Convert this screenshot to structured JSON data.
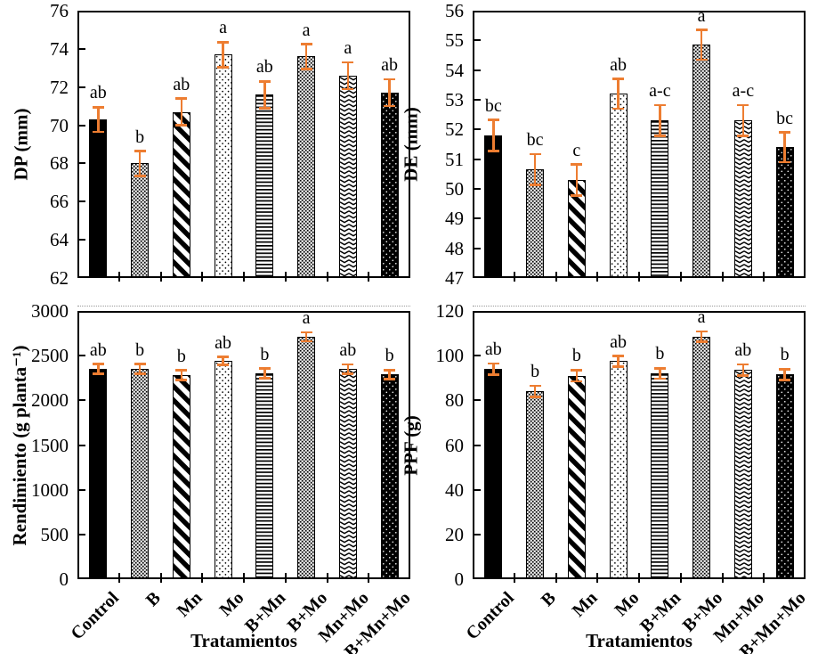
{
  "figure": {
    "background": "#ffffff",
    "axis_color": "#000000",
    "error_bar_color": "#ED7D31",
    "categories": [
      "Control",
      "B",
      "Mn",
      "Mo",
      "B+Mn",
      "B+Mo",
      "Mn+Mo",
      "B+Mn+Mo"
    ],
    "bar_patterns": [
      "solid-black",
      "gray-stipple",
      "diagonal-stripe",
      "dot-sparse",
      "horizontal-line",
      "gray-stipple",
      "chevron",
      "black-dot"
    ]
  },
  "chart_data": [
    {
      "type": "bar",
      "panel": "top-left",
      "ylabel": "DP (mm)",
      "xlabel": "",
      "ylim": [
        62,
        76
      ],
      "yticks": [
        "62",
        "64",
        "66",
        "68",
        "70",
        "72",
        "74",
        "76"
      ],
      "ytick_values": [
        62,
        64,
        66,
        68,
        70,
        72,
        74,
        76
      ],
      "grid": false,
      "categories": [
        "Control",
        "B",
        "Mn",
        "Mo",
        "B+Mn",
        "B+Mo",
        "Mn+Mo",
        "B+Mn+Mo"
      ],
      "values": [
        70.3,
        68.0,
        70.7,
        73.7,
        71.6,
        73.6,
        72.6,
        71.7
      ],
      "errors": [
        0.65,
        0.65,
        0.7,
        0.65,
        0.7,
        0.65,
        0.7,
        0.7
      ],
      "letters": [
        "ab",
        "b",
        "ab",
        "a",
        "ab",
        "a",
        "a",
        "ab"
      ]
    },
    {
      "type": "bar",
      "panel": "top-right",
      "ylabel": "DE (mm)",
      "xlabel": "",
      "ylim": [
        47,
        56
      ],
      "yticks": [
        "47",
        "48",
        "49",
        "50",
        "51",
        "52",
        "53",
        "54",
        "55",
        "56"
      ],
      "ytick_values": [
        47,
        48,
        49,
        50,
        51,
        52,
        53,
        54,
        55,
        56
      ],
      "grid": false,
      "categories": [
        "Control",
        "B",
        "Mn",
        "Mo",
        "B+Mn",
        "B+Mo",
        "Mn+Mo",
        "B+Mn+Mo"
      ],
      "values": [
        51.8,
        50.65,
        50.3,
        53.2,
        52.3,
        54.85,
        52.3,
        51.4
      ],
      "errors": [
        0.52,
        0.52,
        0.52,
        0.5,
        0.52,
        0.5,
        0.52,
        0.5
      ],
      "letters": [
        "bc",
        "bc",
        "c",
        "ab",
        "a-c",
        "a",
        "a-c",
        "bc"
      ]
    },
    {
      "type": "bar",
      "panel": "bottom-left",
      "ylabel": "Rendimiento (g planta⁻¹)",
      "xlabel": "Tratamientos",
      "ylim": [
        0,
        3000
      ],
      "yticks": [
        "0",
        "500",
        "1000",
        "1500",
        "2000",
        "2500",
        "3000"
      ],
      "ytick_values": [
        0,
        500,
        1000,
        1500,
        2000,
        2500,
        3000
      ],
      "grid": false,
      "categories": [
        "Control",
        "B",
        "Mn",
        "Mo",
        "B+Mn",
        "B+Mo",
        "Mn+Mo",
        "B+Mn+Mo"
      ],
      "values": [
        2350,
        2350,
        2280,
        2440,
        2300,
        2710,
        2350,
        2290
      ],
      "errors": [
        55,
        55,
        55,
        45,
        55,
        50,
        50,
        50
      ],
      "letters": [
        "ab",
        "b",
        "b",
        "ab",
        "b",
        "a",
        "ab",
        "b"
      ]
    },
    {
      "type": "bar",
      "panel": "bottom-right",
      "ylabel": "PPF (g)",
      "xlabel": "Tratamientos",
      "ylim": [
        0,
        120
      ],
      "yticks": [
        "0",
        "20",
        "40",
        "60",
        "80",
        "100",
        "120"
      ],
      "ytick_values": [
        0,
        20,
        40,
        60,
        80,
        100,
        120
      ],
      "grid": false,
      "categories": [
        "Control",
        "B",
        "Mn",
        "Mo",
        "B+Mn",
        "B+Mo",
        "Mn+Mo",
        "B+Mn+Mo"
      ],
      "values": [
        94,
        84,
        91,
        97.5,
        92,
        108.5,
        93.5,
        91.5
      ],
      "errors": [
        2.5,
        2.5,
        2.5,
        2.3,
        2.3,
        2.3,
        2.5,
        2.5
      ],
      "letters": [
        "ab",
        "b",
        "b",
        "ab",
        "b",
        "a",
        "ab",
        "b"
      ]
    }
  ]
}
